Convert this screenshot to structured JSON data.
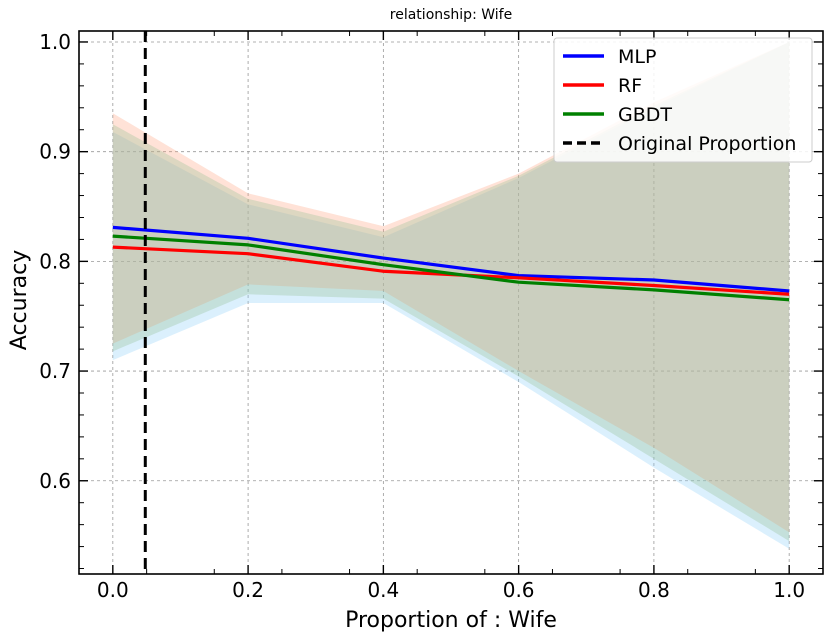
{
  "chart_data": {
    "type": "line",
    "title": "relationship: Wife",
    "xlabel": "Proportion of : Wife",
    "ylabel": "Accuracy",
    "xlim": [
      -0.05,
      1.05
    ],
    "ylim": [
      0.515,
      1.01
    ],
    "x": [
      0.0,
      0.2,
      0.4,
      0.6,
      0.8,
      1.0
    ],
    "xticks": [
      "0.0",
      "0.2",
      "0.4",
      "0.6",
      "0.8",
      "1.0"
    ],
    "yticks": [
      "0.6",
      "0.7",
      "0.8",
      "0.9",
      "1.0"
    ],
    "grid": true,
    "legend_position": "top-right",
    "series": [
      {
        "name": "MLP",
        "color": "#0000ff",
        "values": [
          0.831,
          0.821,
          0.803,
          0.787,
          0.783,
          0.773
        ],
        "band_lower": [
          0.71,
          0.762,
          0.762,
          0.69,
          0.612,
          0.538
        ],
        "band_upper": [
          0.918,
          0.852,
          0.822,
          0.876,
          0.94,
          1.0
        ],
        "band_color": "#87cefa"
      },
      {
        "name": "RF",
        "color": "#ff0000",
        "values": [
          0.813,
          0.807,
          0.791,
          0.785,
          0.778,
          0.77
        ],
        "band_lower": [
          0.725,
          0.779,
          0.773,
          0.7,
          0.63,
          0.553
        ],
        "band_upper": [
          0.935,
          0.862,
          0.832,
          0.88,
          0.945,
          1.0
        ],
        "band_color": "#ffa07a"
      },
      {
        "name": "GBDT",
        "color": "#008000",
        "values": [
          0.823,
          0.815,
          0.797,
          0.781,
          0.774,
          0.765
        ],
        "band_lower": [
          0.718,
          0.77,
          0.766,
          0.695,
          0.62,
          0.545
        ],
        "band_upper": [
          0.925,
          0.857,
          0.827,
          0.878,
          0.942,
          1.0
        ],
        "band_color": "#8fbc8f"
      }
    ],
    "vline": {
      "name": "Original Proportion",
      "x": 0.048,
      "color": "#000000",
      "style": "dashed"
    }
  }
}
